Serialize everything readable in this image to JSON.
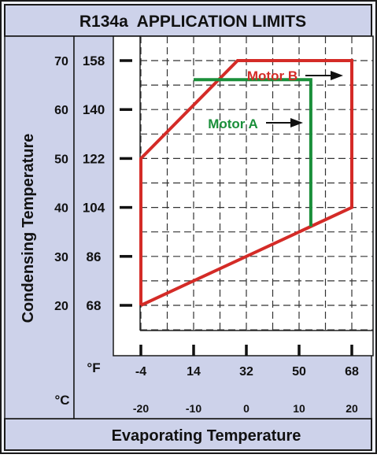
{
  "chart_data": {
    "type": "line",
    "title": "R134a  APPLICATION LIMITS",
    "xlabel": "Evaporating Temperature",
    "ylabel": "Condensing Temperature",
    "x_unit_primary": "°F",
    "x_unit_secondary": "°C",
    "x_ticks_f": [
      "-4",
      "14",
      "32",
      "50",
      "68"
    ],
    "x_ticks_c": [
      "-20",
      "-10",
      "0",
      "10",
      "20"
    ],
    "y_ticks_f": [
      "68",
      "86",
      "104",
      "122",
      "140",
      "158"
    ],
    "y_ticks_c": [
      "20",
      "30",
      "40",
      "50",
      "60",
      "70"
    ],
    "xlim": [
      -4,
      80
    ],
    "ylim": [
      50,
      166
    ],
    "grid": true,
    "series": [
      {
        "name": "Motor B",
        "color": "#d42b27",
        "x": [
          -4,
          -4,
          29,
          68,
          68,
          -4
        ],
        "y": [
          68,
          122,
          158,
          158,
          104,
          68
        ]
      },
      {
        "name": "Motor A",
        "color": "#1a8f3a",
        "x": [
          14,
          14,
          54,
          54
        ],
        "y": [
          151,
          151,
          151,
          97
        ]
      }
    ]
  }
}
